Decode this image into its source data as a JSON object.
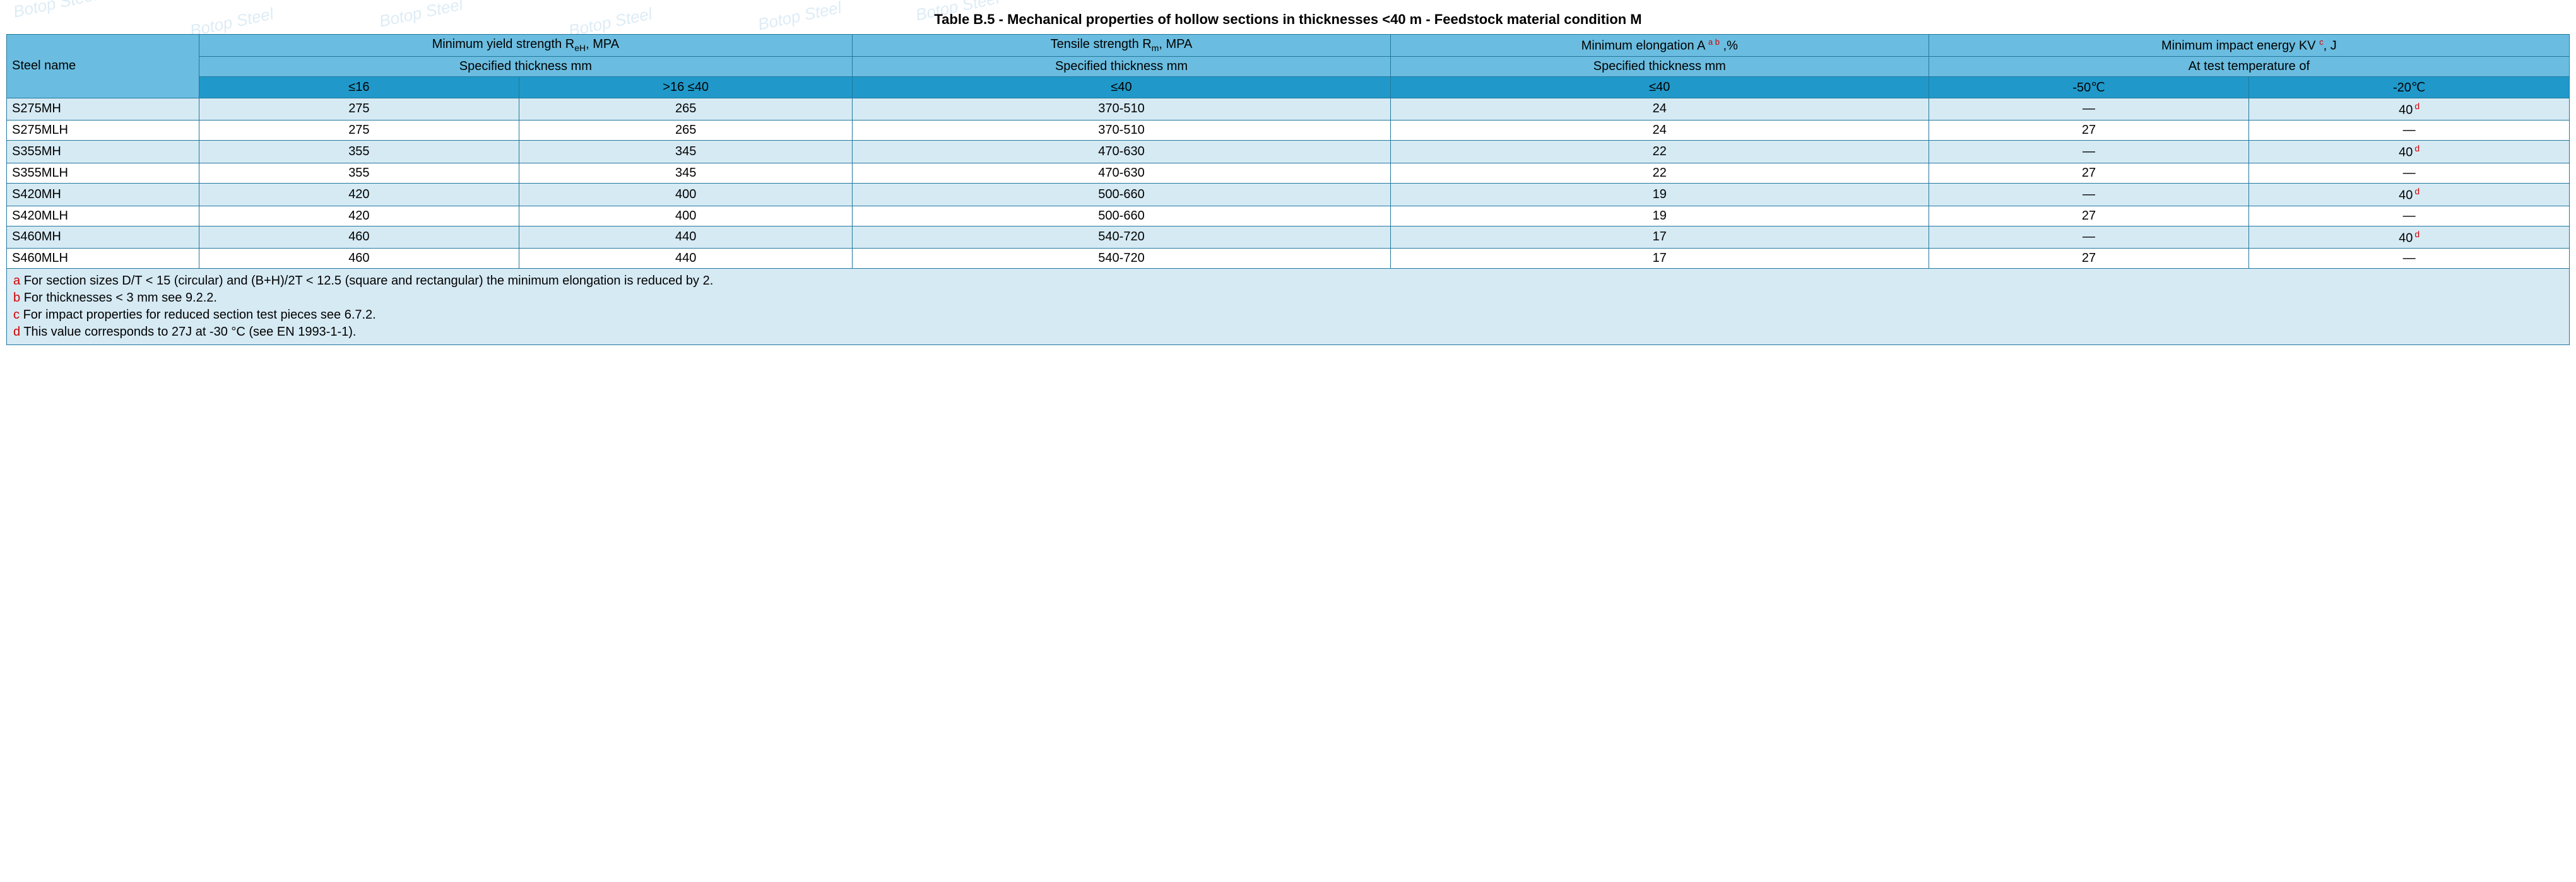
{
  "title": "Table B.5 - Mechanical properties of hollow sections in thicknesses <40 m - Feedstock material condition M",
  "watermark_text": "Botop Steel",
  "headers": {
    "steel_name": "Steel name",
    "yield_title_pre": "Minimum yield strength R",
    "yield_title_sub": "eH",
    "yield_title_post": ", MPA",
    "tensile_title_pre": "Tensile strength R",
    "tensile_title_sub": "m",
    "tensile_title_post": ", MPA",
    "elong_title_pre": "Minimum elongation A ",
    "elong_sup": "a b",
    "elong_title_post": " ,%",
    "impact_title_pre": "Minimum impact energy KV ",
    "impact_sup": "c",
    "impact_title_post": ", J",
    "spec_thick": "Specified thickness mm",
    "at_test_temp": "At test temperature of",
    "le16": "≤16",
    "gt16_le40": ">16 ≤40",
    "le40_full": "≤40",
    "le40": "≤40",
    "neg50": "-50℃",
    "neg20": "-20℃"
  },
  "rows": [
    {
      "name": "S275MH",
      "y16": "275",
      "y40": "265",
      "ten": "370-510",
      "el": "24",
      "t50": "—",
      "t20": "40",
      "t20_d": true
    },
    {
      "name": "S275MLH",
      "y16": "275",
      "y40": "265",
      "ten": "370-510",
      "el": "24",
      "t50": "27",
      "t20": "—",
      "t20_d": false
    },
    {
      "name": "S355MH",
      "y16": "355",
      "y40": "345",
      "ten": "470-630",
      "el": "22",
      "t50": "—",
      "t20": "40",
      "t20_d": true
    },
    {
      "name": "S355MLH",
      "y16": "355",
      "y40": "345",
      "ten": "470-630",
      "el": "22",
      "t50": "27",
      "t20": "—",
      "t20_d": false
    },
    {
      "name": "S420MH",
      "y16": "420",
      "y40": "400",
      "ten": "500-660",
      "el": "19",
      "t50": "—",
      "t20": "40",
      "t20_d": true
    },
    {
      "name": "S420MLH",
      "y16": "420",
      "y40": "400",
      "ten": "500-660",
      "el": "19",
      "t50": "27",
      "t20": "—",
      "t20_d": false
    },
    {
      "name": "S460MH",
      "y16": "460",
      "y40": "440",
      "ten": "540-720",
      "el": "17",
      "t50": "—",
      "t20": "40",
      "t20_d": true
    },
    {
      "name": "S460MLH",
      "y16": "460",
      "y40": "440",
      "ten": "540-720",
      "el": "17",
      "t50": "27",
      "t20": "—",
      "t20_d": false
    }
  ],
  "footnotes": {
    "a": "For section sizes D/T < 15 (circular) and (B+H)/2T < 12.5 (square and rectangular) the minimum elongation is reduced by 2.",
    "b": "For thicknesses < 3 mm see 9.2.2.",
    "c": "For impact properties for reduced section test pieces see 6.7.2.",
    "d": "This value corresponds to 27J at -30 °C (see EN 1993-1-1)."
  },
  "colors": {
    "header_dark": "#2099ca",
    "header_mid": "#6abde0",
    "row_even": "#d6eaf4",
    "row_odd": "#ffffff",
    "border": "#22789d",
    "footnote_letter": "#d10000"
  }
}
